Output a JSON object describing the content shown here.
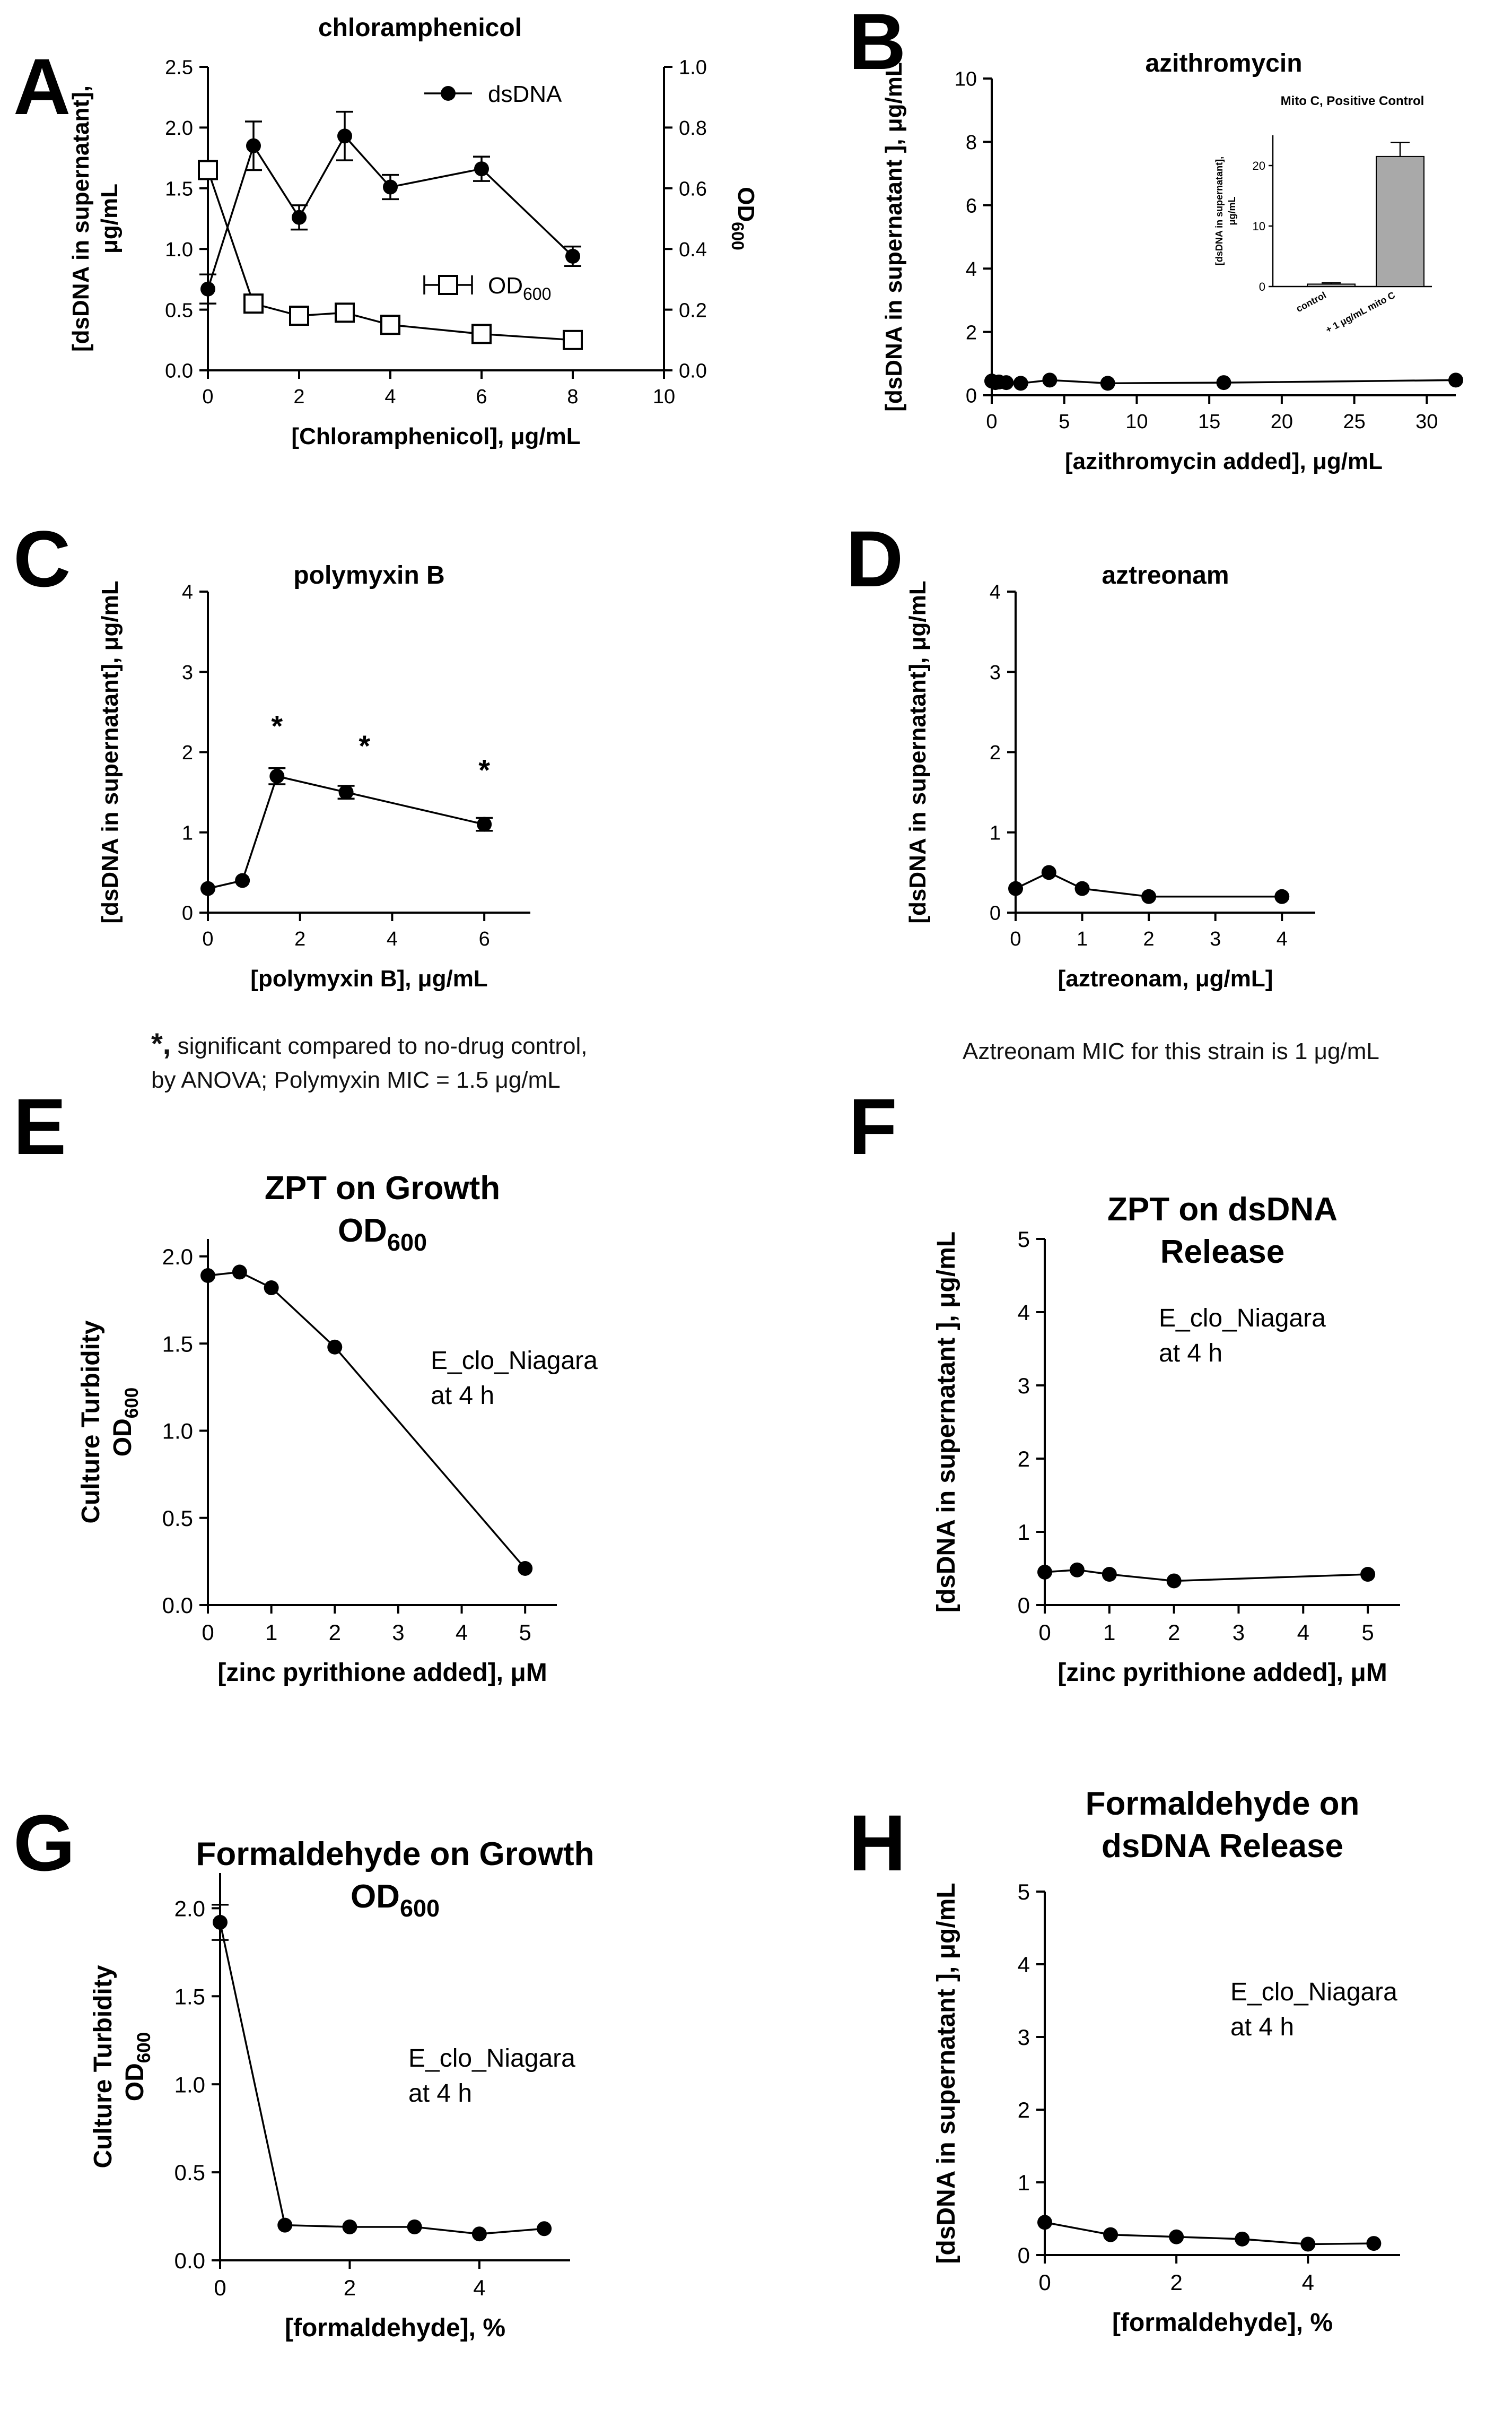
{
  "chart_data": [
    {
      "id": "A",
      "panel_letter": "A",
      "type": "line",
      "title": "chloramphenicol",
      "xlabel": "[Chloramphenicol], μg/mL",
      "ylabel": [
        "[dsDNA in supernatant],",
        "μg/mL"
      ],
      "y2label": "OD600",
      "xlim": [
        0,
        10
      ],
      "xticks": [
        0,
        2,
        4,
        6,
        8,
        10
      ],
      "ylim": [
        0,
        2.5
      ],
      "yticks": [
        "0.0",
        "0.5",
        "1.0",
        "1.5",
        "2.0",
        "2.5"
      ],
      "y2lim": [
        0,
        1.0
      ],
      "y2ticks": [
        "0.0",
        "0.2",
        "0.4",
        "0.6",
        "0.8",
        "1.0"
      ],
      "series": [
        {
          "name": "dsDNA",
          "legend_label": "dsDNA",
          "marker": "circle",
          "axis": "left",
          "x": [
            0,
            1,
            2,
            3,
            4,
            6,
            8
          ],
          "values": [
            0.67,
            1.85,
            1.26,
            1.93,
            1.51,
            1.66,
            0.94
          ],
          "errors": [
            0.12,
            0.2,
            0.1,
            0.2,
            0.1,
            0.1,
            0.08
          ]
        },
        {
          "name": "OD600",
          "legend_label": "OD",
          "legend_sub": "600",
          "marker": "open-square",
          "axis": "right",
          "x": [
            0,
            1,
            2,
            3,
            4,
            6,
            8
          ],
          "values": [
            0.66,
            0.22,
            0.18,
            0.19,
            0.15,
            0.12,
            0.1
          ],
          "errors": [
            0.03,
            0.015,
            0.015,
            0.015,
            0.01,
            0.01,
            0.01
          ]
        }
      ]
    },
    {
      "id": "B",
      "panel_letter": "B",
      "type": "line",
      "title": "azithromycin",
      "xlabel": "[azithromycin added], μg/mL",
      "ylabel": [
        "[dsDNA in supernatant ], μg/mL"
      ],
      "xlim": [
        0,
        32
      ],
      "xticks": [
        0,
        5,
        10,
        15,
        20,
        25,
        30
      ],
      "ylim": [
        0,
        10
      ],
      "yticks": [
        "0",
        "2",
        "4",
        "6",
        "8",
        "10"
      ],
      "series": [
        {
          "name": "dsDNA",
          "marker": "circle",
          "x": [
            0,
            0.25,
            0.5,
            1,
            2,
            4,
            8,
            16,
            32
          ],
          "values": [
            0.45,
            0.4,
            0.42,
            0.4,
            0.38,
            0.48,
            0.38,
            0.4,
            0.48
          ]
        }
      ],
      "inset": {
        "type": "bar",
        "title": "Mito C, Positive Control",
        "ylabel": [
          "[dsDNA in supernatant],",
          "μg/mL"
        ],
        "categories": [
          "control",
          "+ 1 μg/mL mito C"
        ],
        "values": [
          0.4,
          21.5
        ],
        "errors": [
          0.2,
          2.3
        ],
        "ylim": [
          0,
          25
        ],
        "yticks": [
          "0",
          "10",
          "20"
        ]
      }
    },
    {
      "id": "C",
      "panel_letter": "C",
      "type": "line",
      "title": "polymyxin B",
      "xlabel": "[polymyxin B], μg/mL",
      "ylabel": [
        "[dsDNA in supernatant], μg/mL"
      ],
      "xlim": [
        0,
        7
      ],
      "xticks": [
        0,
        2,
        4,
        6
      ],
      "ylim": [
        0,
        4
      ],
      "yticks": [
        "0",
        "1",
        "2",
        "3",
        "4"
      ],
      "series": [
        {
          "name": "dsDNA",
          "marker": "circle",
          "x": [
            0,
            0.75,
            1.5,
            3,
            6
          ],
          "values": [
            0.3,
            0.4,
            1.7,
            1.5,
            1.1
          ],
          "errors": [
            0,
            0,
            0.1,
            0.08,
            0.08
          ]
        }
      ],
      "annotations": [
        {
          "text": "*",
          "x": 1.5,
          "y": 2.2
        },
        {
          "text": "*",
          "x": 3.4,
          "y": 1.95
        },
        {
          "text": "*",
          "x": 6,
          "y": 1.65
        }
      ]
    },
    {
      "id": "D",
      "panel_letter": "D",
      "type": "line",
      "title": "aztreonam",
      "xlabel": "[aztreonam, μg/mL]",
      "ylabel": [
        "[dsDNA in supernatant], μg/mL"
      ],
      "xlim": [
        0,
        4.5
      ],
      "xticks": [
        0,
        1,
        2,
        3,
        4
      ],
      "ylim": [
        0,
        4
      ],
      "yticks": [
        "0",
        "1",
        "2",
        "3",
        "4"
      ],
      "series": [
        {
          "name": "dsDNA",
          "marker": "circle",
          "x": [
            0,
            0.5,
            1,
            2,
            4
          ],
          "values": [
            0.3,
            0.5,
            0.3,
            0.2,
            0.2
          ]
        }
      ]
    },
    {
      "id": "E",
      "panel_letter": "E",
      "type": "line",
      "title_lines": [
        "ZPT on Growth"
      ],
      "title_sub_line": {
        "base": "OD",
        "sub": "600"
      },
      "xlabel": "[zinc pyrithione added], μM",
      "ylabel": [
        "Culture Turbidity"
      ],
      "ylabel_sub": {
        "base": "OD",
        "sub": "600"
      },
      "xlim": [
        0,
        5.5
      ],
      "xticks": [
        0,
        1,
        2,
        3,
        4,
        5
      ],
      "ylim": [
        0,
        2.1
      ],
      "yticks": [
        "0.0",
        "0.5",
        "1.0",
        "1.5",
        "2.0"
      ],
      "ytick_values": [
        0,
        0.5,
        1,
        1.5,
        2
      ],
      "series": [
        {
          "name": "OD600",
          "marker": "circle",
          "x": [
            0,
            0.5,
            1,
            2,
            5
          ],
          "values": [
            1.89,
            1.91,
            1.82,
            1.48,
            0.21
          ]
        }
      ],
      "annotations": [
        {
          "lines": [
            "E_clo_Niagara",
            "at 4 h"
          ]
        }
      ]
    },
    {
      "id": "F",
      "panel_letter": "F",
      "type": "line",
      "title_lines": [
        "ZPT on dsDNA",
        "Release"
      ],
      "xlabel": "[zinc pyrithione added], μM",
      "ylabel": [
        "[dsDNA in supernatant ], μg/mL"
      ],
      "xlim": [
        0,
        5.5
      ],
      "xticks": [
        0,
        1,
        2,
        3,
        4,
        5
      ],
      "ylim": [
        0,
        5
      ],
      "yticks": [
        "0",
        "1",
        "2",
        "3",
        "4",
        "5"
      ],
      "series": [
        {
          "name": "dsDNA",
          "marker": "circle",
          "x": [
            0,
            0.5,
            1,
            2,
            5
          ],
          "values": [
            0.45,
            0.48,
            0.42,
            0.33,
            0.42
          ]
        }
      ],
      "annotations": [
        {
          "lines": [
            "E_clo_Niagara",
            "at 4 h"
          ]
        }
      ]
    },
    {
      "id": "G",
      "panel_letter": "G",
      "type": "line",
      "title_lines": [
        "Formaldehyde on Growth"
      ],
      "title_sub_line": {
        "base": "OD",
        "sub": "600"
      },
      "xlabel": "[formaldehyde], %",
      "ylabel": [
        "Culture Turbidity"
      ],
      "ylabel_sub": {
        "base": "OD",
        "sub": "600"
      },
      "xlim": [
        0,
        5.4
      ],
      "xticks": [
        0,
        2,
        4
      ],
      "ylim": [
        0,
        2.2
      ],
      "yticks": [
        "0.0",
        "0.5",
        "1.0",
        "1.5",
        "2.0"
      ],
      "ytick_values": [
        0,
        0.5,
        1,
        1.5,
        2
      ],
      "series": [
        {
          "name": "OD600",
          "marker": "circle",
          "x": [
            0,
            1,
            2,
            3,
            4,
            5
          ],
          "values": [
            1.92,
            0.2,
            0.19,
            0.19,
            0.15,
            0.18
          ],
          "errors": [
            0.1,
            0,
            0,
            0,
            0,
            0
          ]
        }
      ],
      "annotations": [
        {
          "lines": [
            "E_clo_Niagara",
            "at 4 h"
          ]
        }
      ]
    },
    {
      "id": "H",
      "panel_letter": "H",
      "type": "line",
      "title_lines": [
        "Formaldehyde on",
        "dsDNA Release"
      ],
      "xlabel": "[formaldehyde], %",
      "ylabel": [
        "[dsDNA in supernatant ], μg/mL"
      ],
      "xlim": [
        0,
        5.4
      ],
      "xticks": [
        0,
        2,
        4
      ],
      "ylim": [
        0,
        5
      ],
      "yticks": [
        "0",
        "1",
        "2",
        "3",
        "4",
        "5"
      ],
      "series": [
        {
          "name": "dsDNA",
          "marker": "circle",
          "x": [
            0,
            1,
            2,
            3,
            4,
            5
          ],
          "values": [
            0.45,
            0.28,
            0.25,
            0.22,
            0.15,
            0.16
          ]
        }
      ],
      "annotations": [
        {
          "lines": [
            "E_clo_Niagara",
            "at 4 h"
          ]
        }
      ]
    }
  ],
  "notes": {
    "polymyxin_star": "*,",
    "polymyxin_line1": " significant compared to no-drug control,",
    "polymyxin_line2": "by ANOVA;  Polymyxin MIC = 1.5 μg/mL",
    "aztreonam": "Aztreonam MIC for this strain is 1 μg/mL"
  }
}
